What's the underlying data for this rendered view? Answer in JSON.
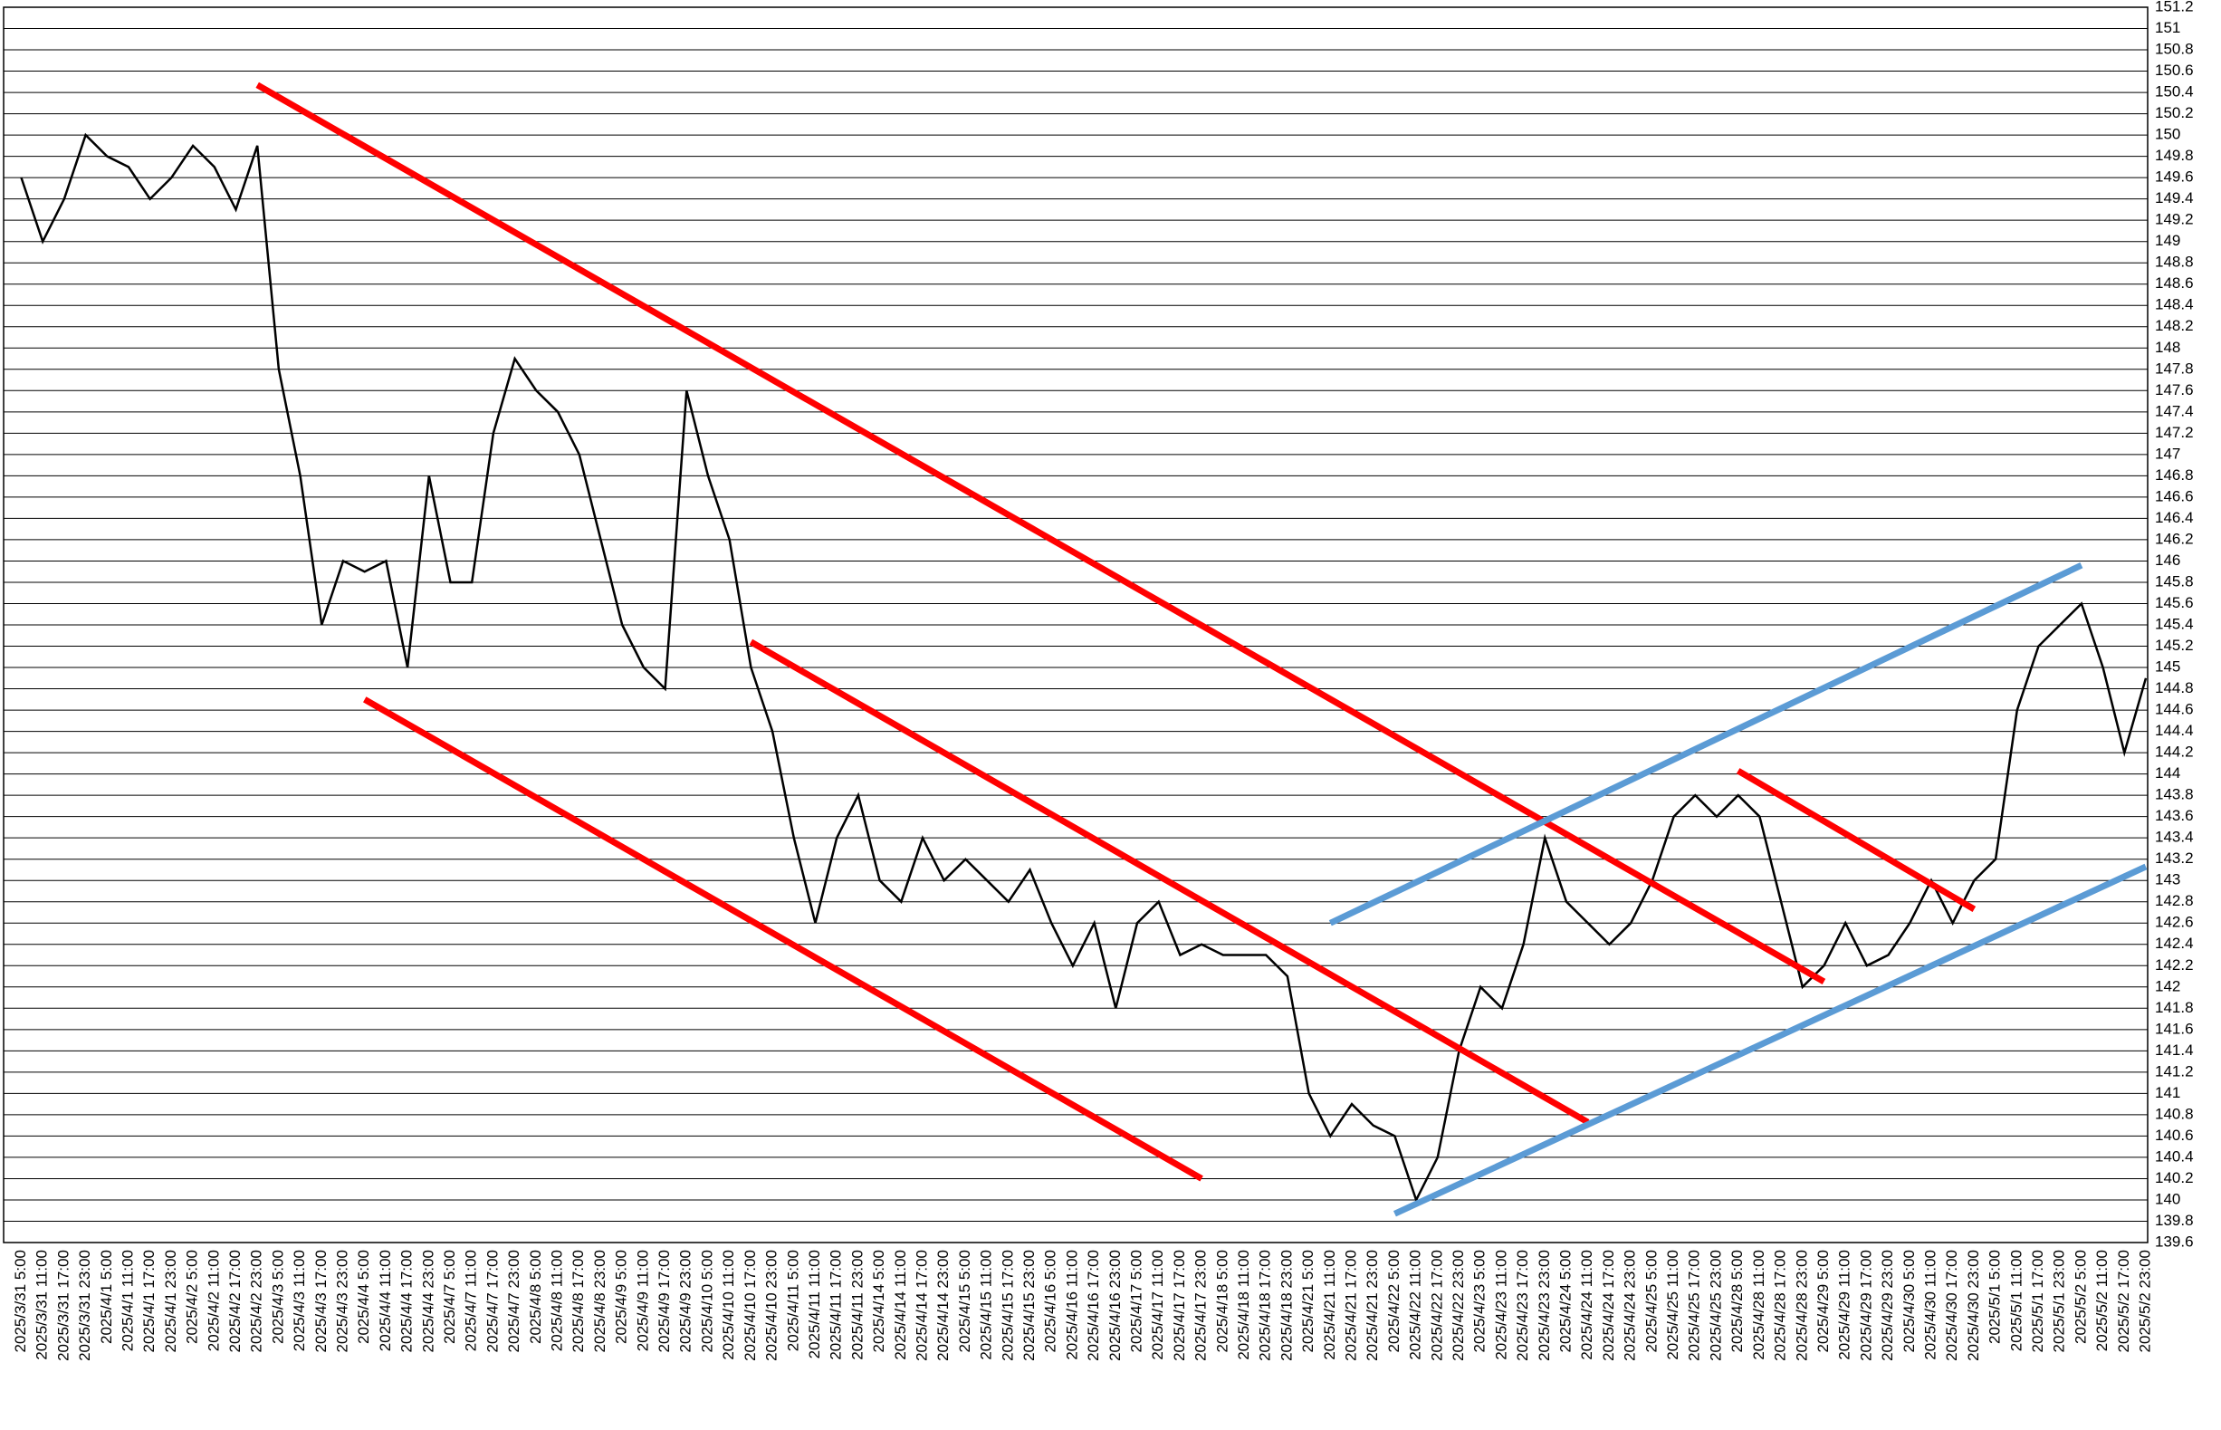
{
  "chart_data": {
    "type": "line",
    "categories": [
      "2025/3/31 5:00",
      "2025/3/31 11:00",
      "2025/3/31 17:00",
      "2025/3/31 23:00",
      "2025/4/1 5:00",
      "2025/4/1 11:00",
      "2025/4/1 17:00",
      "2025/4/1 23:00",
      "2025/4/2 5:00",
      "2025/4/2 11:00",
      "2025/4/2 17:00",
      "2025/4/2 23:00",
      "2025/4/3 5:00",
      "2025/4/3 11:00",
      "2025/4/3 17:00",
      "2025/4/3 23:00",
      "2025/4/4 5:00",
      "2025/4/4 11:00",
      "2025/4/4 17:00",
      "2025/4/4 23:00",
      "2025/4/7 5:00",
      "2025/4/7 11:00",
      "2025/4/7 17:00",
      "2025/4/7 23:00",
      "2025/4/8 5:00",
      "2025/4/8 11:00",
      "2025/4/8 17:00",
      "2025/4/8 23:00",
      "2025/4/9 5:00",
      "2025/4/9 11:00",
      "2025/4/9 17:00",
      "2025/4/9 23:00",
      "2025/4/10 5:00",
      "2025/4/10 11:00",
      "2025/4/10 17:00",
      "2025/4/10 23:00",
      "2025/4/11 5:00",
      "2025/4/11 11:00",
      "2025/4/11 17:00",
      "2025/4/11 23:00",
      "2025/4/14 5:00",
      "2025/4/14 11:00",
      "2025/4/14 17:00",
      "2025/4/14 23:00",
      "2025/4/15 5:00",
      "2025/4/15 11:00",
      "2025/4/15 17:00",
      "2025/4/15 23:00",
      "2025/4/16 5:00",
      "2025/4/16 11:00",
      "2025/4/16 17:00",
      "2025/4/16 23:00",
      "2025/4/17 5:00",
      "2025/4/17 11:00",
      "2025/4/17 17:00",
      "2025/4/17 23:00",
      "2025/4/18 5:00",
      "2025/4/18 11:00",
      "2025/4/18 17:00",
      "2025/4/18 23:00",
      "2025/4/21 5:00",
      "2025/4/21 11:00",
      "2025/4/21 17:00",
      "2025/4/21 23:00",
      "2025/4/22 5:00",
      "2025/4/22 11:00",
      "2025/4/22 17:00",
      "2025/4/22 23:00",
      "2025/4/23 5:00",
      "2025/4/23 11:00",
      "2025/4/23 17:00",
      "2025/4/23 23:00",
      "2025/4/24 5:00",
      "2025/4/24 11:00",
      "2025/4/24 17:00",
      "2025/4/24 23:00",
      "2025/4/25 5:00",
      "2025/4/25 11:00",
      "2025/4/25 17:00",
      "2025/4/25 23:00",
      "2025/4/28 5:00",
      "2025/4/28 11:00",
      "2025/4/28 17:00",
      "2025/4/28 23:00",
      "2025/4/29 5:00",
      "2025/4/29 11:00",
      "2025/4/29 17:00",
      "2025/4/29 23:00",
      "2025/4/30 5:00",
      "2025/4/30 11:00",
      "2025/4/30 17:00",
      "2025/4/30 23:00",
      "2025/5/1 5:00",
      "2025/5/1 11:00",
      "2025/5/1 17:00",
      "2025/5/1 23:00",
      "2025/5/2 5:00",
      "2025/5/2 11:00",
      "2025/5/2 17:00",
      "2025/5/2 23:00"
    ],
    "values": [
      149.6,
      149.0,
      149.4,
      150.0,
      149.8,
      149.7,
      149.4,
      149.6,
      149.9,
      149.7,
      149.3,
      149.9,
      147.8,
      146.8,
      145.4,
      146.0,
      145.9,
      146.0,
      145.0,
      146.8,
      145.8,
      145.8,
      147.2,
      147.9,
      147.6,
      147.4,
      147.0,
      146.2,
      145.4,
      145.0,
      144.8,
      147.6,
      146.8,
      146.2,
      145.0,
      144.4,
      143.4,
      142.6,
      143.4,
      143.8,
      143.0,
      142.8,
      143.4,
      143.0,
      143.2,
      143.0,
      142.8,
      143.1,
      142.6,
      142.2,
      142.6,
      141.8,
      142.6,
      142.8,
      142.3,
      142.4,
      142.3,
      142.3,
      142.3,
      142.1,
      141.0,
      140.6,
      140.9,
      140.7,
      140.6,
      140.0,
      140.4,
      141.4,
      142.0,
      141.8,
      142.4,
      143.4,
      142.8,
      142.6,
      142.4,
      142.6,
      143.0,
      143.6,
      143.8,
      143.6,
      143.8,
      143.6,
      142.8,
      142.0,
      142.2,
      142.6,
      142.2,
      142.3,
      142.6,
      143.0,
      142.6,
      143.0,
      143.2,
      144.6,
      145.2,
      145.4,
      145.6,
      145.0,
      144.2,
      144.9
    ],
    "color": "#000000",
    "trendlines": [
      {
        "color": "#ff0000",
        "x": [
          "2025/4/2 23:00",
          "2025/4/29 5:00"
        ],
        "values": [
          150.47,
          142.05
        ]
      },
      {
        "color": "#ff0000",
        "x": [
          "2025/4/4 5:00",
          "2025/4/17 23:00"
        ],
        "values": [
          144.7,
          140.2
        ]
      },
      {
        "color": "#ff0000",
        "x": [
          "2025/4/10 17:00",
          "2025/4/24 11:00"
        ],
        "values": [
          145.24,
          140.73
        ]
      },
      {
        "color": "#ff0000",
        "x": [
          "2025/4/28 5:00",
          "2025/4/30 23:00"
        ],
        "values": [
          144.03,
          142.73
        ]
      },
      {
        "color": "#5b9bd5",
        "x": [
          "2025/4/21 11:00",
          "2025/5/2 5:00"
        ],
        "values": [
          142.6,
          145.96
        ]
      },
      {
        "color": "#5b9bd5",
        "x": [
          "2025/4/22 5:00",
          "2025/5/2 23:00"
        ],
        "values": [
          139.87,
          143.13
        ]
      }
    ],
    "ylim": [
      139.6,
      151.2
    ],
    "yticks": [
      139.6,
      139.8,
      140,
      140.2,
      140.4,
      140.6,
      140.8,
      141,
      141.2,
      141.4,
      141.6,
      141.8,
      142,
      142.2,
      142.4,
      142.6,
      142.8,
      143,
      143.2,
      143.4,
      143.6,
      143.8,
      144,
      144.2,
      144.4,
      144.6,
      144.8,
      145,
      145.2,
      145.4,
      145.6,
      145.8,
      146,
      146.2,
      146.4,
      146.6,
      146.8,
      147,
      147.2,
      147.4,
      147.6,
      147.8,
      148,
      148.2,
      148.4,
      148.6,
      148.8,
      149,
      149.2,
      149.4,
      149.6,
      149.8,
      150,
      150.2,
      150.4,
      150.6,
      150.8,
      151,
      151.2
    ],
    "grid": true
  }
}
